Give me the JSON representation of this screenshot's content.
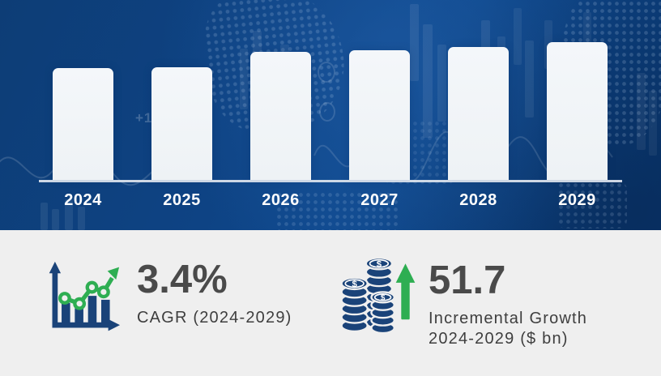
{
  "chart_data": {
    "type": "bar",
    "title": "",
    "categories": [
      "2024",
      "2025",
      "2026",
      "2027",
      "2028",
      "2029"
    ],
    "values_relative": [
      0.81,
      0.82,
      0.93,
      0.94,
      0.965,
      1.0
    ],
    "value_axis": "unlabeled (decorative heights, no scale shown)",
    "legend": "none",
    "grid": "off",
    "bar_color": "#f0f4f7",
    "background_color": "#0e4383"
  },
  "background": {
    "faint_ticker_text": "+1"
  },
  "stats": {
    "cagr": {
      "value": "3.4%",
      "label": "CAGR (2024-2029)",
      "icon": "growth-chart-icon"
    },
    "incremental": {
      "value": "51.7",
      "label_line1": "Incremental Growth",
      "label_line2": "2024-2029 ($ bn)",
      "icon": "coin-stacks-up-arrow-icon"
    }
  },
  "colors": {
    "panel_blue": "#0e4383",
    "panel_gray": "#efefef",
    "bar_fill": "#f0f4f7",
    "axis_line": "#dee5ee",
    "year_label_text": "#ffffff",
    "number_text": "#4a4a4a",
    "sub_text": "#3e3e3e",
    "icon_navy": "#1a4379",
    "icon_green": "#2eae52"
  }
}
